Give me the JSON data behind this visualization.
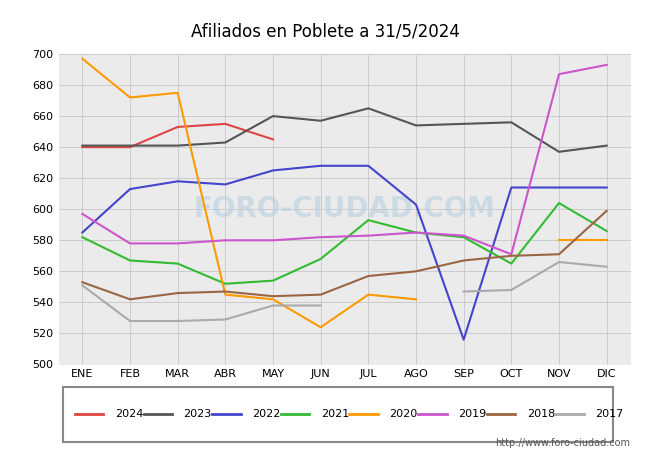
{
  "title": "Afiliados en Poblete a 31/5/2024",
  "title_bg_color": "#5baee0",
  "months": [
    "ENE",
    "FEB",
    "MAR",
    "ABR",
    "MAY",
    "JUN",
    "JUL",
    "AGO",
    "SEP",
    "OCT",
    "NOV",
    "DIC"
  ],
  "ylim": [
    500,
    700
  ],
  "yticks": [
    500,
    520,
    540,
    560,
    580,
    600,
    620,
    640,
    660,
    680,
    700
  ],
  "series": {
    "2024": {
      "color": "#dd4444",
      "data": [
        640,
        640,
        653,
        655,
        645,
        null,
        null,
        null,
        null,
        null,
        null,
        null
      ]
    },
    "2023": {
      "color": "#555555",
      "data": [
        641,
        641,
        641,
        643,
        660,
        657,
        665,
        654,
        655,
        656,
        637,
        641
      ]
    },
    "2022": {
      "color": "#4444cc",
      "data": [
        585,
        613,
        618,
        616,
        625,
        628,
        628,
        603,
        516,
        614,
        614,
        614
      ]
    },
    "2021": {
      "color": "#33bb33",
      "data": [
        582,
        567,
        565,
        552,
        554,
        568,
        593,
        585,
        582,
        565,
        604,
        586
      ]
    },
    "2020": {
      "color": "#ff9900",
      "data": [
        697,
        672,
        675,
        545,
        542,
        524,
        545,
        542,
        null,
        null,
        580,
        580
      ]
    },
    "2019": {
      "color": "#cc55cc",
      "data": [
        597,
        578,
        578,
        580,
        580,
        582,
        583,
        585,
        583,
        571,
        687,
        693
      ]
    },
    "2018": {
      "color": "#996644",
      "data": [
        553,
        542,
        546,
        547,
        544,
        545,
        557,
        560,
        567,
        570,
        571,
        599
      ]
    },
    "2017": {
      "color": "#aaaaaa",
      "data": [
        551,
        528,
        528,
        529,
        538,
        538,
        null,
        null,
        547,
        548,
        566,
        563
      ]
    }
  },
  "watermark": "FORO-CIUDAD.COM",
  "url": "http://www.foro-ciudad.com",
  "plot_bg_color": "#ebebeb",
  "grid_color": "#cccccc",
  "fig_bg_color": "#ffffff"
}
